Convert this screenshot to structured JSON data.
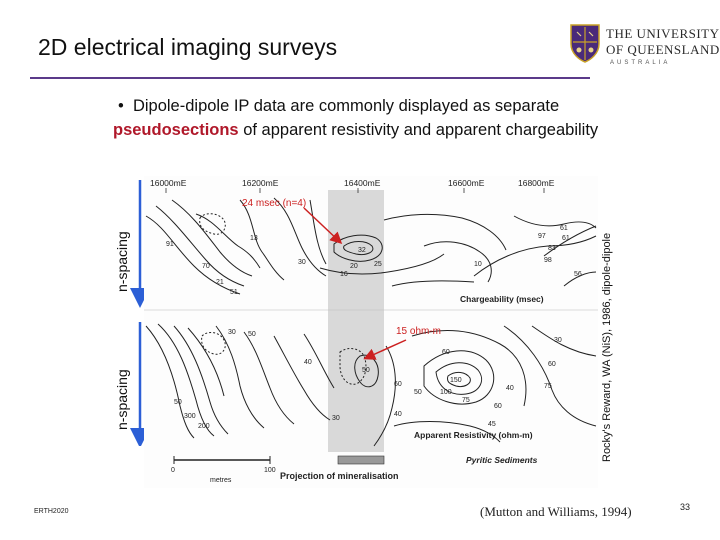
{
  "slide": {
    "title": "2D electrical imaging surveys",
    "bullet_part1": "Dipole-dipole IP data are commonly displayed as separate",
    "bullet_highlight": "pseudosections",
    "bullet_part2": " of apparent resistivity and apparent chargeability",
    "footer_left": "ERTH2020",
    "citation": "(Mutton and  Williams, 1994)",
    "page_number": "33"
  },
  "logo": {
    "line1": "THE UNIVERSITY",
    "line2": "OF QUEENSLAND",
    "line3": "AUSTRALIA"
  },
  "axis_labels": {
    "n_spacing_top": "n-spacing",
    "n_spacing_bottom": "n-spacing",
    "credit": "Rocky's Reward, WA (NiS), 1986, dipole-dipole"
  },
  "figure": {
    "easting_labels": [
      "16000mE",
      "16200mE",
      "16400mE",
      "16600mE",
      "16800mE"
    ],
    "chargeability_label": "Chargeability (msec)",
    "resistivity_label": "Apparent Resistivity (ohm-m)",
    "sediments_label": "Pyritic Sediments",
    "scale_start": "0",
    "scale_end": "100",
    "scale_unit": "metres",
    "projection_label": "Projection of mineralisation",
    "annotation_chargeability": "24 msec (n=4)",
    "annotation_resistivity": "15 ohm-m",
    "contours_top": [
      "91",
      "70",
      "21",
      "51",
      "13",
      "30",
      "32",
      "20",
      "25",
      "16",
      "10",
      "61",
      "61",
      "97",
      "83",
      "98",
      "56"
    ],
    "contours_bottom": [
      "30",
      "50",
      "40",
      "30",
      "50",
      "60",
      "50",
      "40",
      "60",
      "30",
      "150",
      "100",
      "75",
      "60",
      "40",
      "60",
      "75",
      "45",
      "50",
      "300",
      "200"
    ]
  },
  "colors": {
    "title_rule": "#5b3a8a",
    "highlight": "#b0182a",
    "arrow_red": "#cc2020",
    "arrow_blue": "#2c5fd6",
    "projection_band": "#d9d9d9"
  }
}
